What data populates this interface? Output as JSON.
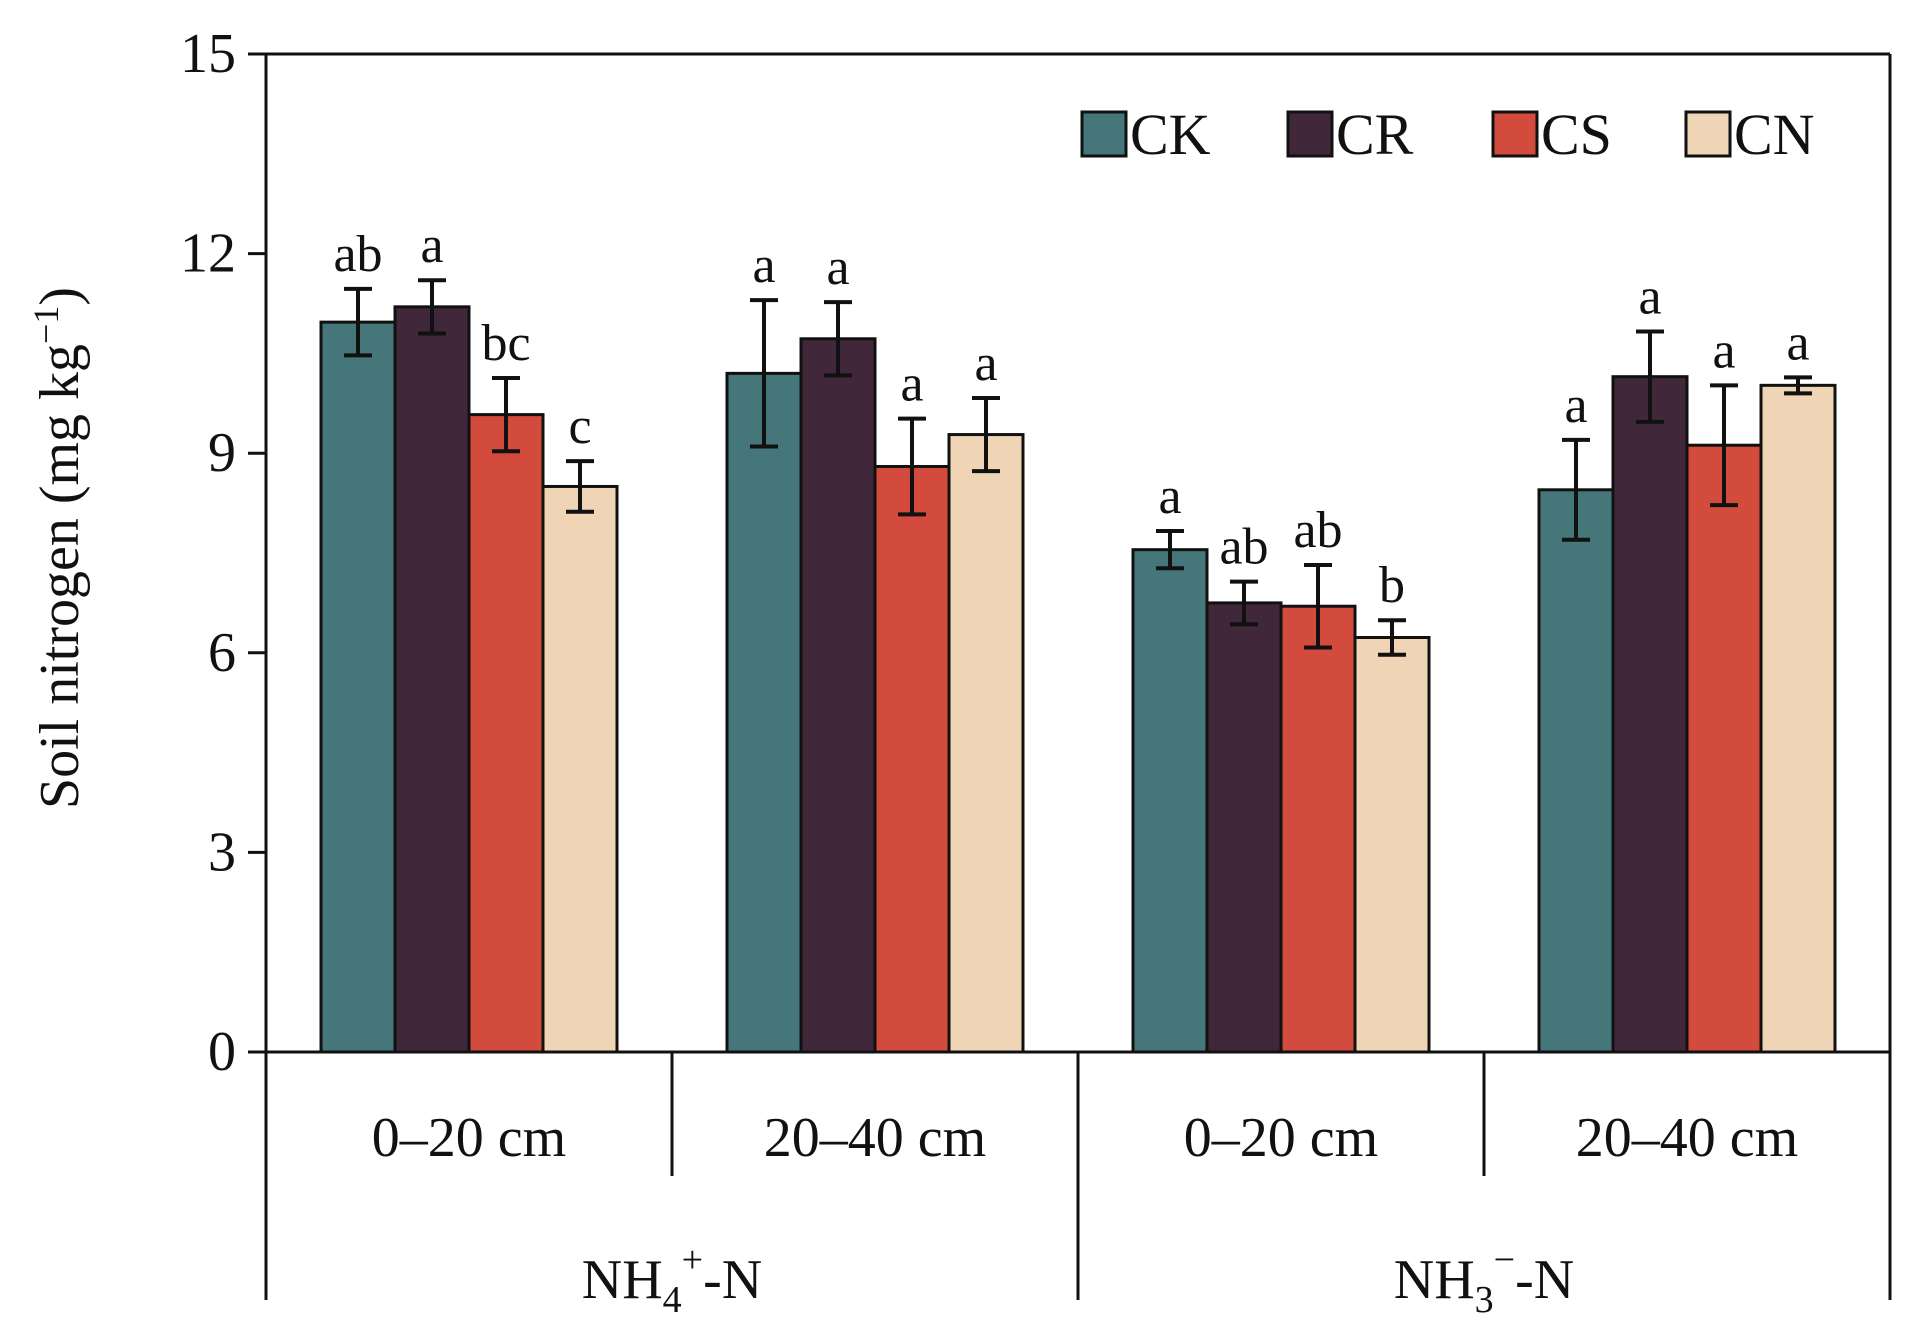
{
  "chart_data": {
    "type": "bar",
    "ylabel": "Soil nitrogen (mg kg",
    "ylabel_sup": "−1",
    "ylabel_end": ")",
    "ylim": [
      0,
      15
    ],
    "yticks": [
      "0",
      "3",
      "6",
      "9",
      "12",
      "15"
    ],
    "legend_position": "top-right",
    "categories": [
      "0–20 cm",
      "20–40 cm",
      "0–20 cm",
      "20–40 cm"
    ],
    "groups": [
      {
        "base": "NH",
        "sub": "4",
        "sup": "+",
        "suffix": "-N"
      },
      {
        "base": "NH",
        "sub": "3",
        "sup": "−",
        "suffix": "-N"
      }
    ],
    "series": [
      {
        "name": "CK",
        "color": "#45777a",
        "values": [
          10.97,
          10.2,
          7.55,
          8.45
        ],
        "errors": [
          0.5,
          1.1,
          0.28,
          0.75
        ],
        "letters": [
          "ab",
          "a",
          "a",
          "a"
        ]
      },
      {
        "name": "CR",
        "color": "#40283a",
        "values": [
          11.2,
          10.72,
          6.75,
          10.15
        ],
        "errors": [
          0.4,
          0.55,
          0.32,
          0.68
        ],
        "letters": [
          "a",
          "a",
          "ab",
          "a"
        ]
      },
      {
        "name": "CS",
        "color": "#d24b3c",
        "values": [
          9.58,
          8.8,
          6.7,
          9.12
        ],
        "errors": [
          0.55,
          0.72,
          0.62,
          0.9
        ],
        "letters": [
          "bc",
          "a",
          "ab",
          "a"
        ]
      },
      {
        "name": "CN",
        "color": "#efd5b5",
        "values": [
          8.5,
          9.28,
          6.23,
          10.02
        ],
        "errors": [
          0.38,
          0.55,
          0.26,
          0.12
        ],
        "letters": [
          "c",
          "a",
          "b",
          "a"
        ]
      }
    ]
  }
}
